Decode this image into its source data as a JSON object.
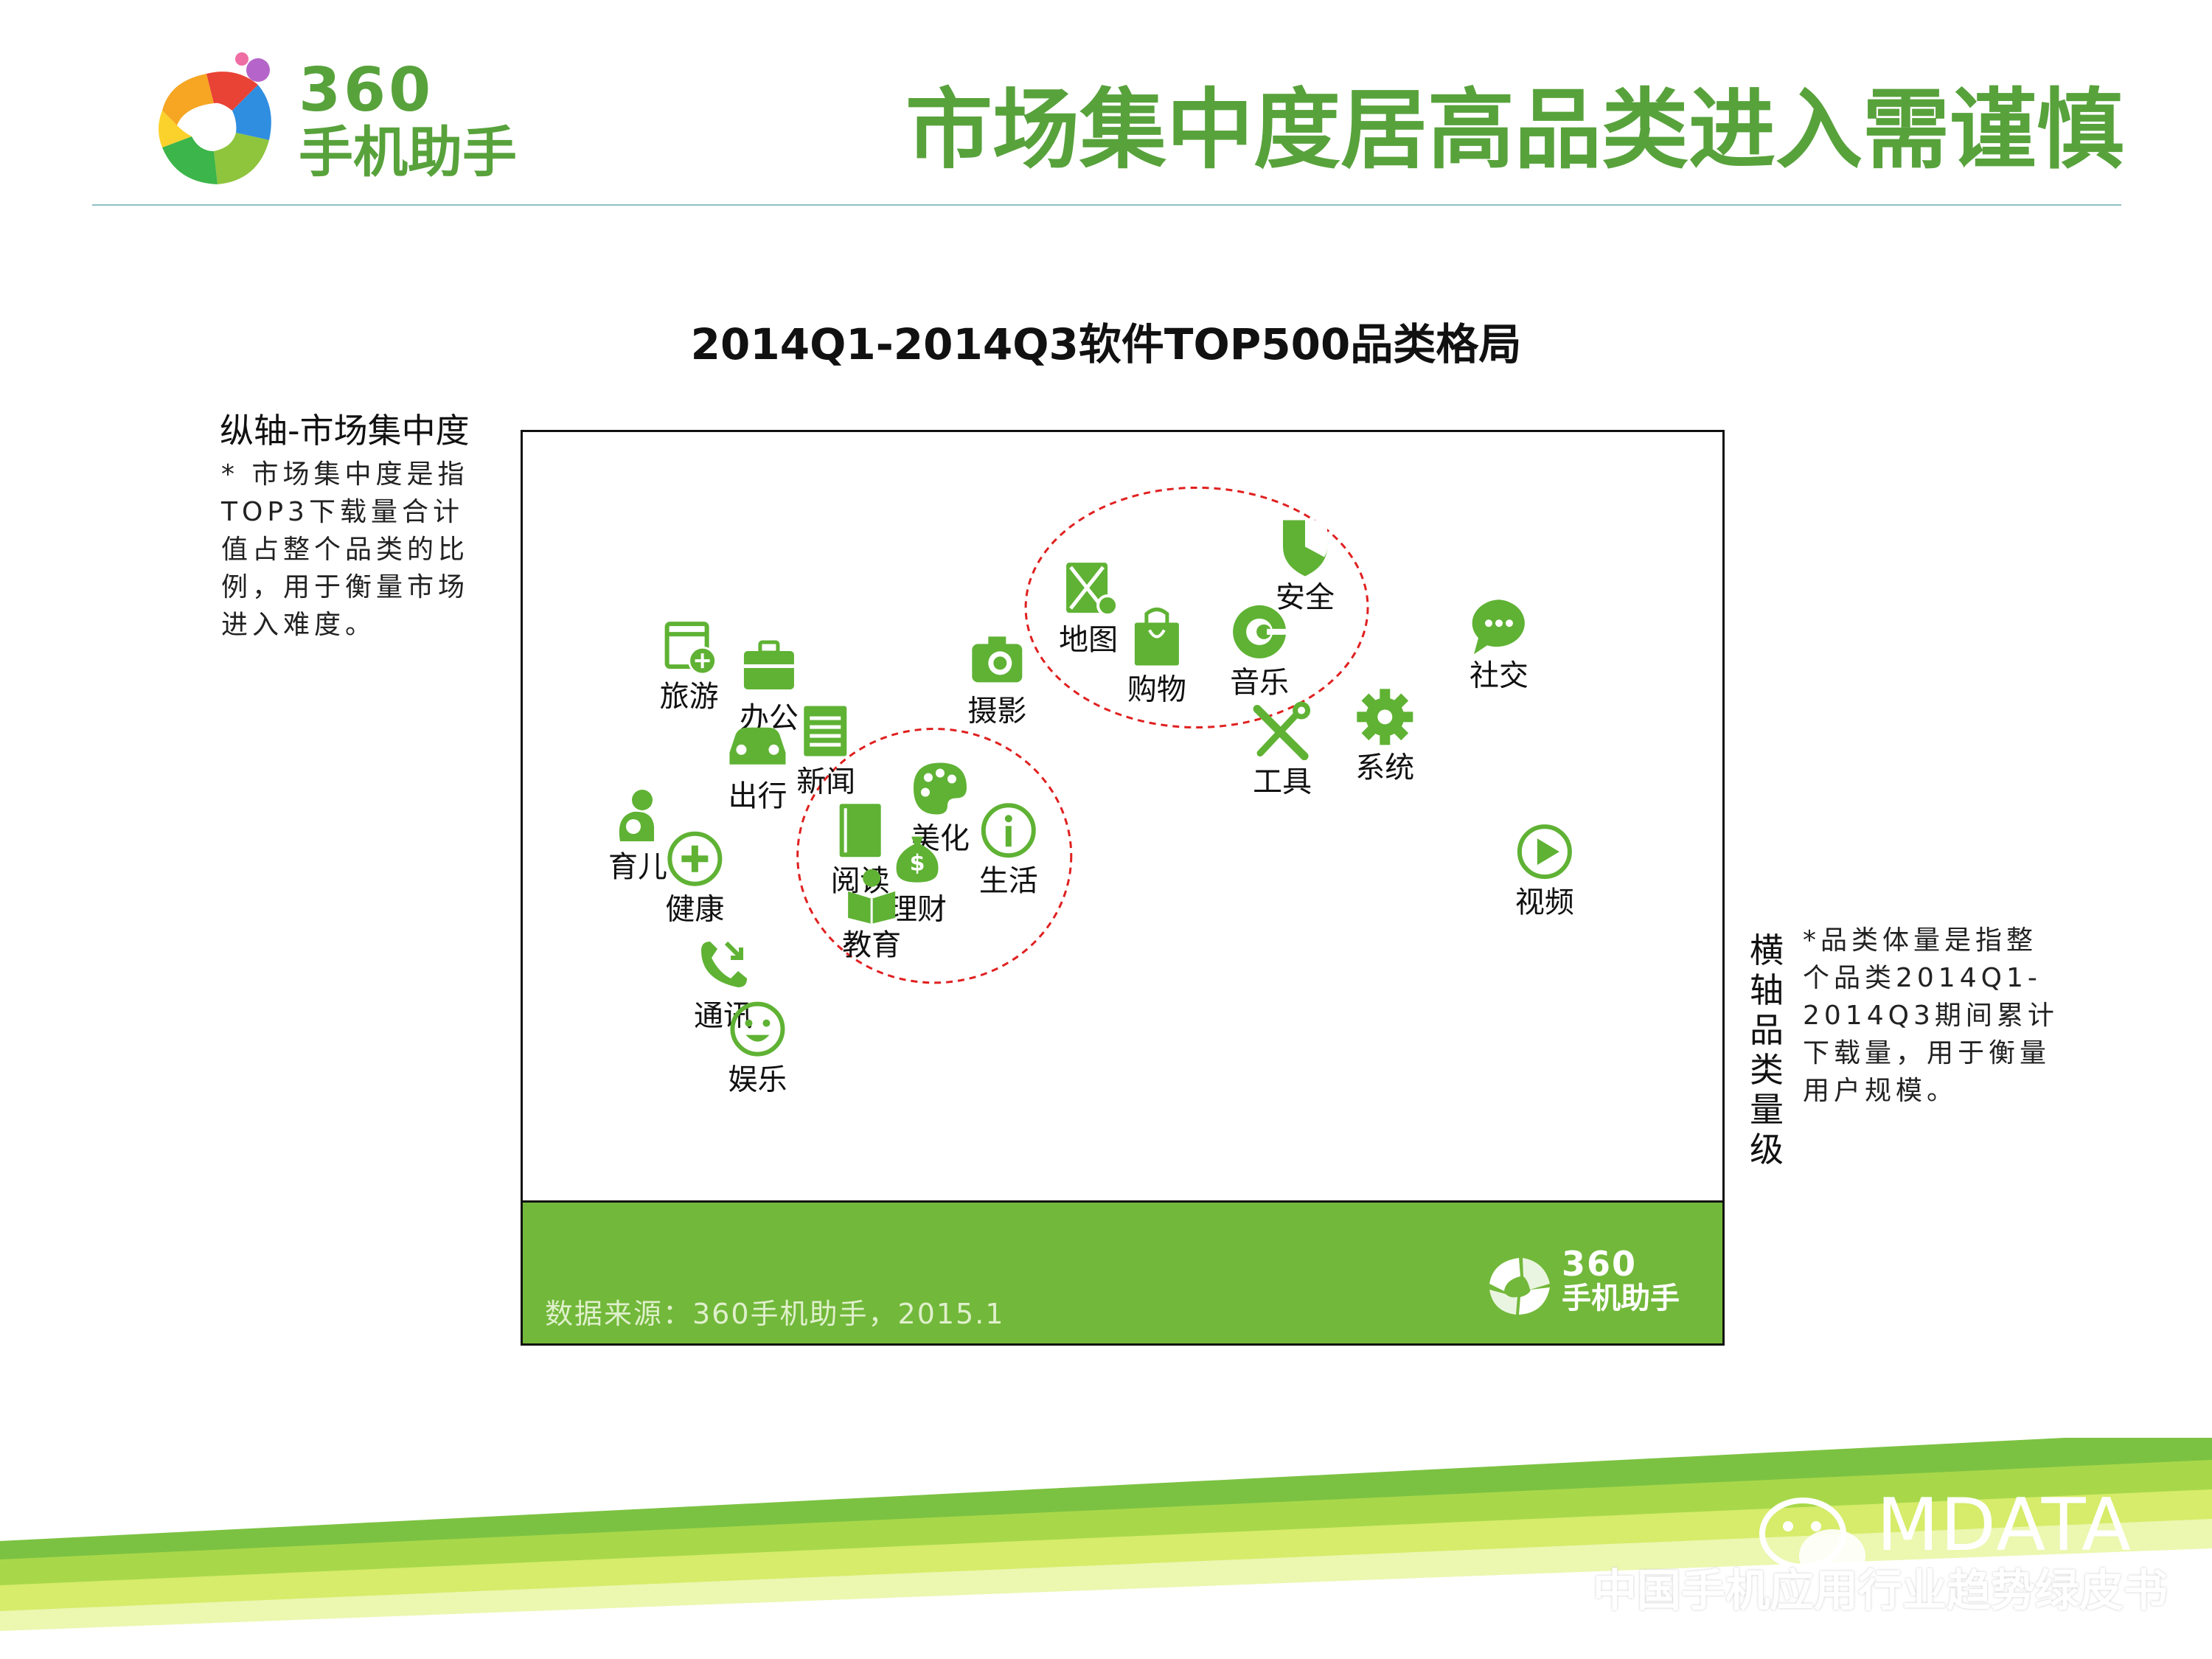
{
  "header": {
    "logo_number": "360",
    "logo_text": "手机助手",
    "page_title": "市场集中度居高品类进入需谨慎"
  },
  "chart_data": {
    "type": "scatter",
    "title": "2014Q1-2014Q3软件TOP500品类格局",
    "ylabel": "纵轴-市场集中度",
    "xlabel": "横轴-品类量级",
    "y_note": "* 市场集中度是指TOP3下载量合计值占整个品类的比例，用于衡量市场进入难度。",
    "x_note": "*品类体量是指整个品类2014Q1-2014Q3期间累计下载量，用于衡量用户规模。",
    "source": "数据来源：360手机助手，2015.1",
    "axis_ticks_shown": false,
    "grid": false,
    "points": [
      {
        "label": "安全",
        "icon": "shield-icon",
        "x": 0.66,
        "y": 0.88
      },
      {
        "label": "地图",
        "icon": "map-icon",
        "x": 0.47,
        "y": 0.82
      },
      {
        "label": "音乐",
        "icon": "music-icon",
        "x": 0.62,
        "y": 0.76
      },
      {
        "label": "购物",
        "icon": "shopping-bag-icon",
        "x": 0.53,
        "y": 0.75
      },
      {
        "label": "社交",
        "icon": "chat-icon",
        "x": 0.83,
        "y": 0.77
      },
      {
        "label": "旅游",
        "icon": "calendar-plane-icon",
        "x": 0.12,
        "y": 0.74
      },
      {
        "label": "办公",
        "icon": "briefcase-icon",
        "x": 0.19,
        "y": 0.71
      },
      {
        "label": "摄影",
        "icon": "camera-icon",
        "x": 0.39,
        "y": 0.72
      },
      {
        "label": "新闻",
        "icon": "newspaper-icon",
        "x": 0.24,
        "y": 0.62
      },
      {
        "label": "出行",
        "icon": "car-icon",
        "x": 0.18,
        "y": 0.6
      },
      {
        "label": "工具",
        "icon": "tools-icon",
        "x": 0.64,
        "y": 0.62
      },
      {
        "label": "系统",
        "icon": "gear-icon",
        "x": 0.73,
        "y": 0.64
      },
      {
        "label": "美化",
        "icon": "palette-icon",
        "x": 0.34,
        "y": 0.54
      },
      {
        "label": "阅读",
        "icon": "book-icon",
        "x": 0.27,
        "y": 0.48
      },
      {
        "label": "生活",
        "icon": "info-icon",
        "x": 0.4,
        "y": 0.48
      },
      {
        "label": "理财",
        "icon": "money-bag-icon",
        "x": 0.32,
        "y": 0.44
      },
      {
        "label": "育儿",
        "icon": "baby-icon",
        "x": 0.075,
        "y": 0.5
      },
      {
        "label": "健康",
        "icon": "health-plus-icon",
        "x": 0.125,
        "y": 0.44
      },
      {
        "label": "教育",
        "icon": "education-icon",
        "x": 0.28,
        "y": 0.39
      },
      {
        "label": "视频",
        "icon": "play-icon",
        "x": 0.87,
        "y": 0.45
      },
      {
        "label": "通讯",
        "icon": "phone-icon",
        "x": 0.15,
        "y": 0.29
      },
      {
        "label": "娱乐",
        "icon": "smiley-icon",
        "x": 0.18,
        "y": 0.2
      }
    ],
    "circled_groups": [
      [
        "地图",
        "购物",
        "音乐",
        "安全"
      ],
      [
        "阅读",
        "美化",
        "生活",
        "理财",
        "教育"
      ]
    ],
    "marker_color": "#5fb234",
    "circle_color": "#e02020",
    "footer_color": "#72b83a"
  },
  "footer": {
    "logo_number": "360",
    "logo_text": "手机助手"
  },
  "watermark": {
    "brand": "MDATA",
    "subtitle": "中国手机应用行业趋势绿皮书"
  }
}
